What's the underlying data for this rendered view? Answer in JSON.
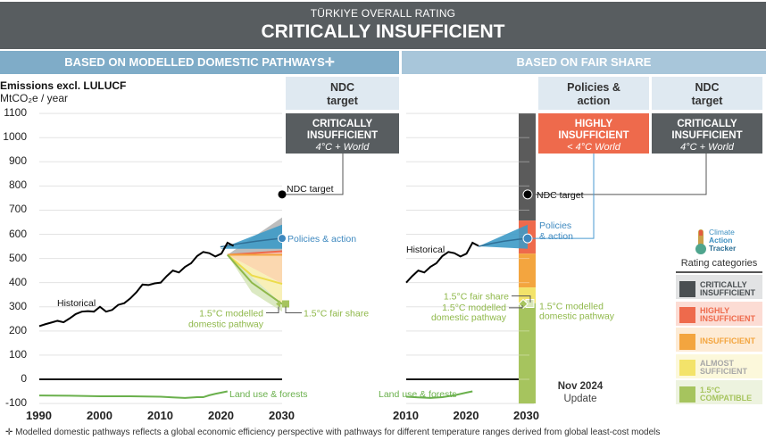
{
  "banner": {
    "subtitle": "TÜRKIYE OVERALL RATING",
    "title": "CRITICALLY INSUFFICIENT"
  },
  "sections": {
    "left": "BASED ON MODELLED DOMESTIC PATHWAYS✛",
    "right": "BASED ON FAIR SHARE"
  },
  "axis": {
    "title": "Emissions excl. LULUCF",
    "unit": "MtCO₂e / year"
  },
  "rating_boxes": {
    "left_ndc": {
      "header": "NDC target",
      "rating": "CRITICALLY INSUFFICIENT",
      "temp": "4°C + World",
      "color": "#585d60"
    },
    "right_policies": {
      "header": "Policies & action",
      "rating": "HIGHLY INSUFFICIENT",
      "temp": "< 4°C World",
      "color": "#ee6a4c"
    },
    "right_ndc": {
      "header": "NDC target",
      "rating": "CRITICALLY INSUFFICIENT",
      "temp": "4°C + World",
      "color": "#585d60"
    }
  },
  "legend": {
    "logo": [
      "Climate",
      "Action",
      "Tracker"
    ],
    "title": "Rating categories",
    "items": [
      {
        "label": "CRITICALLY INSUFFICIENT",
        "color": "#4a4f52",
        "bg": "#e2e3e4",
        "text_color": "#4a4f52"
      },
      {
        "label": "HIGHLY INSUFFICIENT",
        "color": "#ee6a4c",
        "bg": "#fcdcd4",
        "text_color": "#ee6a4c"
      },
      {
        "label": "INSUFFICIENT",
        "color": "#f3a53f",
        "bg": "#fdebd5",
        "text_color": "#f3a53f"
      },
      {
        "label": "ALMOST SUFFICIENT",
        "color": "#f3e36a",
        "bg": "#fcf8db",
        "text_color": "#a8a8a8"
      },
      {
        "label": "1.5°C COMPATIBLE",
        "color": "#a6c45e",
        "bg": "#edf3df",
        "text_color": "#a6c45e"
      }
    ]
  },
  "update": {
    "date": "Nov 2024",
    "label": "Update"
  },
  "footnote": "✛  Modelled domestic pathways reflects a global economic efficiency perspective with pathways for different temperature ranges derived from global least-cost models",
  "labels": {
    "historical": "Historical",
    "ndc_target": "NDC target",
    "policies_action": "Policies & action",
    "policies_line1": "Policies",
    "policies_line2": "& action",
    "mdp_line1": "1.5°C modelled",
    "mdp_line2": "domestic pathway",
    "fair_share": "1.5°C fair share",
    "land_use": "Land use & forests"
  },
  "chart_data": [
    {
      "type": "line",
      "title": "Based on modelled domestic pathways",
      "ylabel": "Emissions excl. LULUCF (MtCO2e / year)",
      "ylim": [
        -100,
        1100
      ],
      "yticks": [
        1100,
        1000,
        900,
        800,
        700,
        600,
        500,
        400,
        300,
        200,
        100,
        0,
        -100
      ],
      "xlim": [
        1990,
        2030
      ],
      "xticks": [
        1990,
        2000,
        2010,
        2020,
        2030
      ],
      "grid": true,
      "series": [
        {
          "name": "Historical",
          "color": "#000000",
          "x": [
            1990,
            1991,
            1992,
            1993,
            1994,
            1995,
            1996,
            1997,
            1998,
            1999,
            2000,
            2001,
            2002,
            2003,
            2004,
            2005,
            2006,
            2007,
            2008,
            2009,
            2010,
            2011,
            2012,
            2013,
            2014,
            2015,
            2016,
            2017,
            2018,
            2019,
            2020,
            2021,
            2022
          ],
          "y": [
            220,
            228,
            235,
            242,
            236,
            252,
            270,
            280,
            282,
            280,
            300,
            280,
            287,
            308,
            315,
            335,
            360,
            392,
            390,
            397,
            400,
            427,
            450,
            442,
            465,
            480,
            510,
            527,
            522,
            508,
            520,
            565,
            552
          ]
        },
        {
          "name": "Land use & forests",
          "color": "#6ab04c",
          "x": [
            1990,
            1995,
            2000,
            2005,
            2010,
            2012,
            2014,
            2016,
            2017,
            2018,
            2019,
            2020,
            2021
          ],
          "y": [
            -67,
            -68,
            -70,
            -70,
            -72,
            -75,
            -77,
            -74,
            -74,
            -66,
            -60,
            -55,
            -50
          ]
        }
      ],
      "projections_2030": {
        "policies_action_range": [
          540,
          640
        ],
        "policies_action_median": 583,
        "critically_insufficient_max": 670,
        "highly_insufficient_boundary": 530,
        "insufficient_boundary": 515,
        "almost_sufficient_boundary": 395,
        "modelled_1_5C_pathway": 312,
        "modelled_1_5C_min": 280,
        "fair_share_1_5C": 312,
        "ndc_target": 765,
        "start_year": 2021,
        "start_value": 515
      }
    },
    {
      "type": "line",
      "title": "Based on fair share",
      "ylim": [
        -100,
        1100
      ],
      "xlim": [
        2010,
        2030
      ],
      "xticks": [
        2010,
        2020,
        2030
      ],
      "grid": true,
      "series": [
        {
          "name": "Historical",
          "color": "#000000",
          "x": [
            2010,
            2011,
            2012,
            2013,
            2014,
            2015,
            2016,
            2017,
            2018,
            2019,
            2020,
            2021,
            2022
          ],
          "y": [
            400,
            427,
            450,
            442,
            465,
            480,
            510,
            527,
            522,
            508,
            520,
            565,
            552
          ]
        },
        {
          "name": "Land use & forests",
          "color": "#6ab04c",
          "x": [
            2010,
            2012,
            2014,
            2016,
            2018,
            2020,
            2021
          ],
          "y": [
            -72,
            -75,
            -77,
            -74,
            -66,
            -55,
            -50
          ]
        }
      ],
      "fair_share_bands_2030": [
        {
          "category": "Critically insufficient",
          "from": 657,
          "to": 1100,
          "color": "#5b5b5b"
        },
        {
          "category": "Highly insufficient",
          "from": 520,
          "to": 657,
          "color": "#ee6a4c"
        },
        {
          "category": "Insufficient",
          "from": 380,
          "to": 520,
          "color": "#f3a53f"
        },
        {
          "category": "Almost sufficient",
          "from": 315,
          "to": 380,
          "color": "#f3e36a"
        },
        {
          "category": "1.5°C compatible",
          "from": -100,
          "to": 315,
          "color": "#a6c45e"
        }
      ],
      "markers_2030": {
        "ndc_target": 765,
        "policies_action": 583,
        "fair_share_1_5C": 312,
        "modelled_1_5C_pathway": 312
      },
      "policies_action_range": [
        540,
        640
      ]
    }
  ]
}
